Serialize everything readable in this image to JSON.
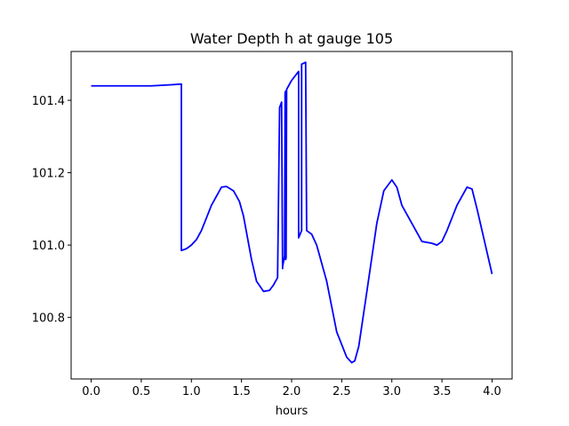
{
  "chart_data": {
    "type": "line",
    "title": "Water Depth h at gauge 105",
    "xlabel": "hours",
    "ylabel": "",
    "xlim": [
      -0.2,
      4.2
    ],
    "ylim": [
      100.63,
      101.535
    ],
    "x_ticks": [
      0.0,
      0.5,
      1.0,
      1.5,
      2.0,
      2.5,
      3.0,
      3.5,
      4.0
    ],
    "x_tick_labels": [
      "0.0",
      "0.5",
      "1.0",
      "1.5",
      "2.0",
      "2.5",
      "3.0",
      "3.5",
      "4.0"
    ],
    "y_ticks": [
      100.8,
      101.0,
      101.2,
      101.4
    ],
    "y_tick_labels": [
      "100.8",
      "101.0",
      "101.2",
      "101.4"
    ],
    "grid": false,
    "legend": "none",
    "colors": {
      "line": "#0000ff",
      "axes": "#000000",
      "background": "#ffffff"
    },
    "series": [
      {
        "x": [
          0.0,
          0.3,
          0.6,
          0.8,
          0.9,
          0.9,
          0.95,
          1.0,
          1.05,
          1.1,
          1.2,
          1.3,
          1.35,
          1.42,
          1.48,
          1.52,
          1.6,
          1.65,
          1.72,
          1.78,
          1.82,
          1.86,
          1.88,
          1.88,
          1.9,
          1.91,
          1.91,
          1.93,
          1.935,
          1.94,
          1.94,
          1.945,
          1.95,
          1.95,
          2.0,
          2.07,
          2.07,
          2.1,
          2.1,
          2.14,
          2.14,
          2.15,
          2.15,
          2.2,
          2.25,
          2.35,
          2.45,
          2.55,
          2.6,
          2.63,
          2.67,
          2.75,
          2.85,
          2.92,
          3.0,
          3.05,
          3.1,
          3.2,
          3.3,
          3.4,
          3.45,
          3.5,
          3.55,
          3.65,
          3.75,
          3.8,
          3.85,
          3.9,
          4.0
        ],
        "y": [
          101.44,
          101.44,
          101.44,
          101.443,
          101.445,
          100.985,
          100.99,
          101.0,
          101.015,
          101.04,
          101.11,
          101.16,
          101.162,
          101.15,
          101.12,
          101.08,
          100.96,
          100.9,
          100.872,
          100.875,
          100.89,
          100.91,
          101.375,
          101.38,
          101.395,
          100.935,
          100.94,
          100.97,
          101.42,
          101.425,
          100.96,
          100.965,
          101.42,
          101.43,
          101.455,
          101.48,
          101.02,
          101.04,
          101.5,
          101.505,
          101.5,
          101.04,
          101.04,
          101.03,
          101.0,
          100.9,
          100.76,
          100.69,
          100.675,
          100.68,
          100.72,
          100.87,
          101.06,
          101.15,
          101.18,
          101.16,
          101.11,
          101.06,
          101.01,
          101.005,
          101.0,
          101.01,
          101.04,
          101.11,
          101.16,
          101.155,
          101.1,
          101.04,
          100.92
        ]
      }
    ]
  }
}
